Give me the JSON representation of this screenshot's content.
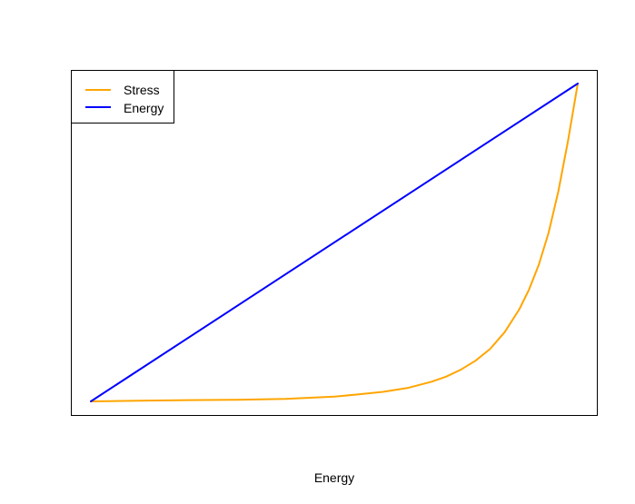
{
  "chart_data": {
    "type": "line",
    "title": "",
    "xlabel": "Energy",
    "ylabel": "",
    "xlim": [
      0,
      1
    ],
    "ylim": [
      0,
      1
    ],
    "grid": false,
    "axes_ticks_shown": false,
    "legend": {
      "placement": "top-left",
      "entries": [
        {
          "name": "Stress",
          "color": "#FFA500"
        },
        {
          "name": "Energy",
          "color": "#0000FF"
        }
      ]
    },
    "series": [
      {
        "name": "Stress",
        "color": "#FFA500",
        "x": [
          0,
          0.1,
          0.2,
          0.3,
          0.4,
          0.5,
          0.55,
          0.6,
          0.65,
          0.7,
          0.73,
          0.76,
          0.79,
          0.82,
          0.85,
          0.88,
          0.9,
          0.92,
          0.94,
          0.96,
          0.98,
          1.0
        ],
        "y": [
          0,
          0.002,
          0.004,
          0.005,
          0.008,
          0.015,
          0.022,
          0.03,
          0.042,
          0.062,
          0.078,
          0.1,
          0.128,
          0.165,
          0.218,
          0.29,
          0.352,
          0.43,
          0.53,
          0.66,
          0.82,
          1.0
        ]
      },
      {
        "name": "Energy",
        "color": "#0000FF",
        "x": [
          0,
          1
        ],
        "y": [
          0,
          1
        ]
      }
    ]
  }
}
